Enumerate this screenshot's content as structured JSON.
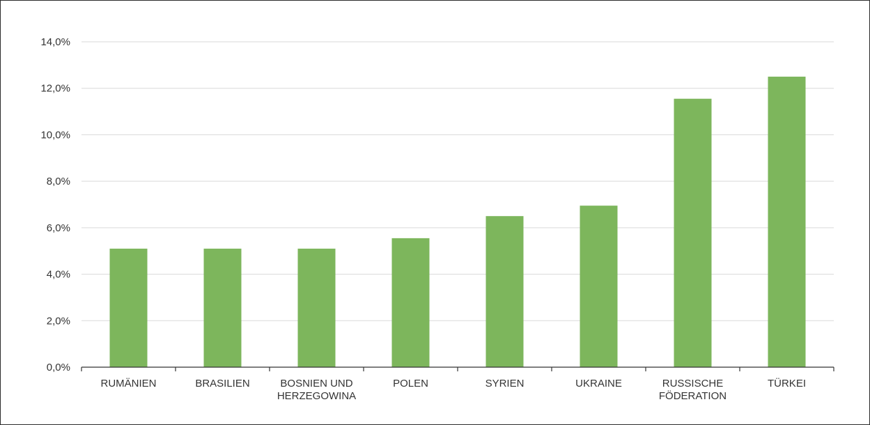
{
  "chart_data": {
    "type": "bar",
    "categories": [
      [
        "RUMÄNIEN"
      ],
      [
        "BRASILIEN"
      ],
      [
        "BOSNIEN UND",
        "HERZEGOWINA"
      ],
      [
        "POLEN"
      ],
      [
        "SYRIEN"
      ],
      [
        "UKRAINE"
      ],
      [
        "RUSSISCHE",
        "FÖDERATION"
      ],
      [
        "TÜRKEI"
      ]
    ],
    "values": [
      5.1,
      5.1,
      5.1,
      5.55,
      6.5,
      6.95,
      11.55,
      12.5
    ],
    "ylim": [
      0,
      14
    ],
    "yticks": [
      0,
      2,
      4,
      6,
      8,
      10,
      12,
      14
    ],
    "ytick_labels": [
      "0,0%",
      "2,0%",
      "4,0%",
      "6,0%",
      "8,0%",
      "10,0%",
      "12,0%",
      "14,0%"
    ],
    "grid": true,
    "bar_color": "#7db65c",
    "grid_color": "#d9d9d9",
    "axis_color": "#333333"
  }
}
